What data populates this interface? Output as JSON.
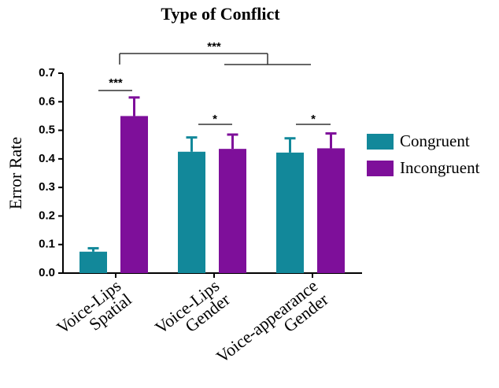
{
  "chart_data": {
    "type": "bar",
    "title": "Type of Conflict",
    "ylabel": "Error Rate",
    "categories": [
      [
        "Voice-Lips",
        "Spatial"
      ],
      [
        "Voice-Lips",
        "Gender"
      ],
      [
        "Voice-appearance",
        "Gender"
      ]
    ],
    "series": [
      {
        "name": "Congruent",
        "color": "#12889a",
        "values": [
          0.075,
          0.425,
          0.422
        ],
        "errors": [
          0.012,
          0.05,
          0.05
        ]
      },
      {
        "name": "Incongruent",
        "color": "#7e0f9a",
        "values": [
          0.55,
          0.435,
          0.437
        ],
        "errors": [
          0.065,
          0.05,
          0.052
        ]
      }
    ],
    "ylim": [
      0,
      0.7
    ],
    "yticks": [
      {
        "value": 0,
        "label": "0.0"
      },
      0.1,
      0.2,
      0.3,
      0.4,
      0.5,
      0.6,
      0.7
    ],
    "legend": "right",
    "annotations": [
      "***",
      "*",
      "*",
      "***"
    ]
  }
}
